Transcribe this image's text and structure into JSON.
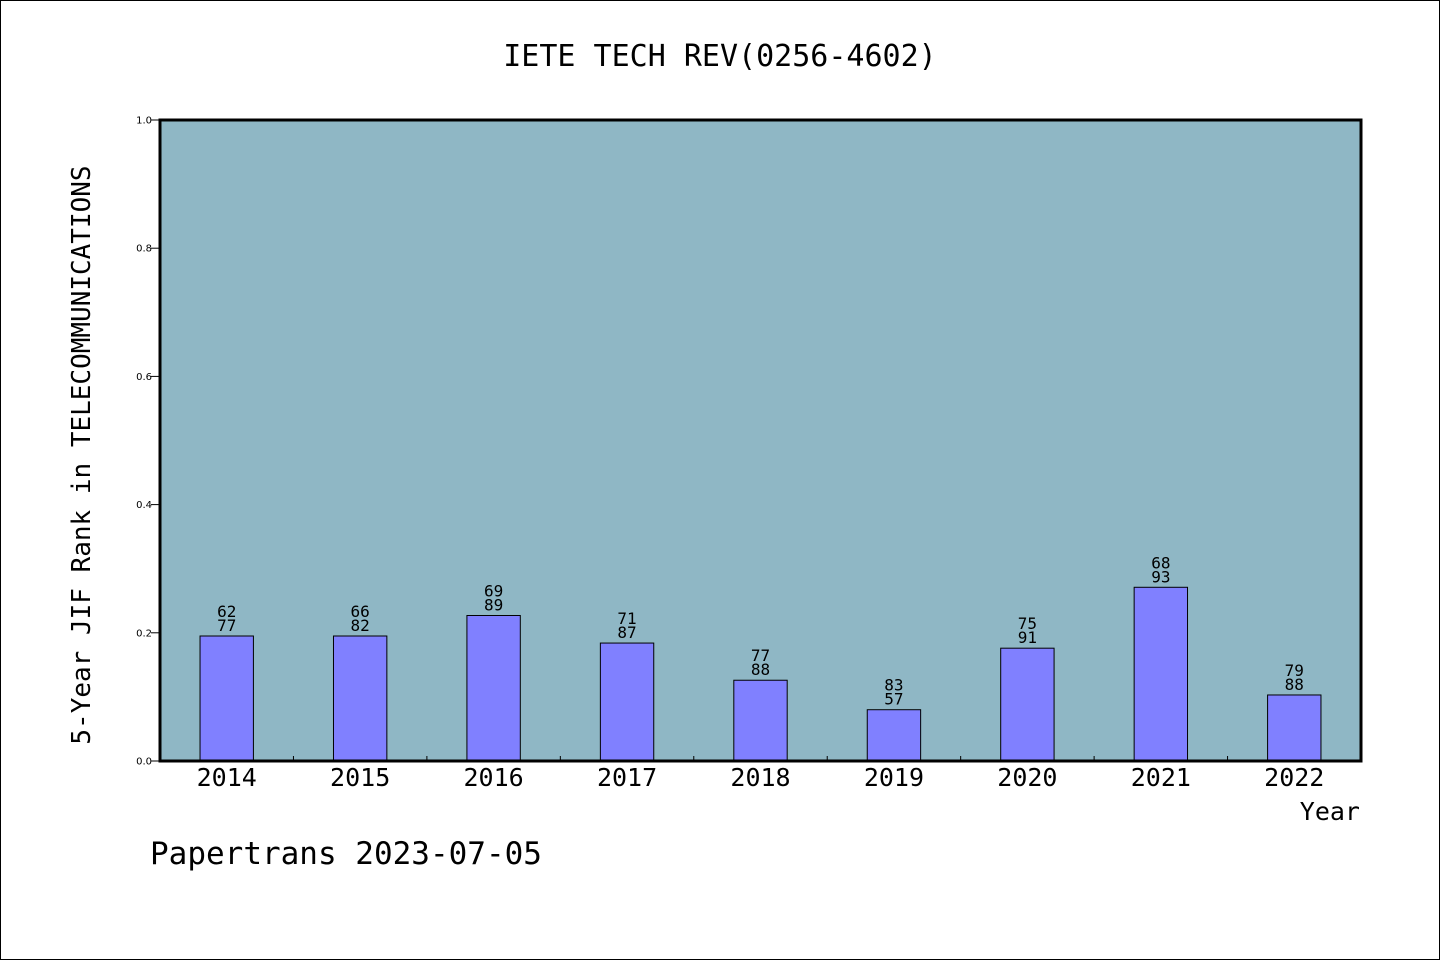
{
  "chart_data": {
    "type": "bar",
    "title": "IETE TECH REV(0256-4602)",
    "xlabel": "Year",
    "ylabel": "5-Year JIF Rank in TELECOMMUNICATIONS",
    "ylim": [
      0,
      1.0
    ],
    "yticks": [
      "0.0",
      "0.2",
      "0.4",
      "0.6",
      "0.8",
      "1.0"
    ],
    "categories": [
      "2014",
      "2015",
      "2016",
      "2017",
      "2018",
      "2019",
      "2020",
      "2021",
      "2022"
    ],
    "values": [
      0.195,
      0.195,
      0.227,
      0.184,
      0.126,
      0.08,
      0.176,
      0.271,
      0.103
    ],
    "labels": [
      {
        "top": "62",
        "bottom": "77"
      },
      {
        "top": "66",
        "bottom": "82"
      },
      {
        "top": "69",
        "bottom": "89"
      },
      {
        "top": "71",
        "bottom": "87"
      },
      {
        "top": "77",
        "bottom": "88"
      },
      {
        "top": "83",
        "bottom": "57"
      },
      {
        "top": "75",
        "bottom": "91"
      },
      {
        "top": "68",
        "bottom": "93"
      },
      {
        "top": "79",
        "bottom": "88"
      }
    ],
    "grid": false,
    "legend": "none",
    "colors": {
      "plot_background": "#8fb7c5",
      "bar": "#8080ff",
      "bar_edge": "#000000",
      "frame": "#000000"
    }
  },
  "footer": "Papertrans 2023-07-05"
}
